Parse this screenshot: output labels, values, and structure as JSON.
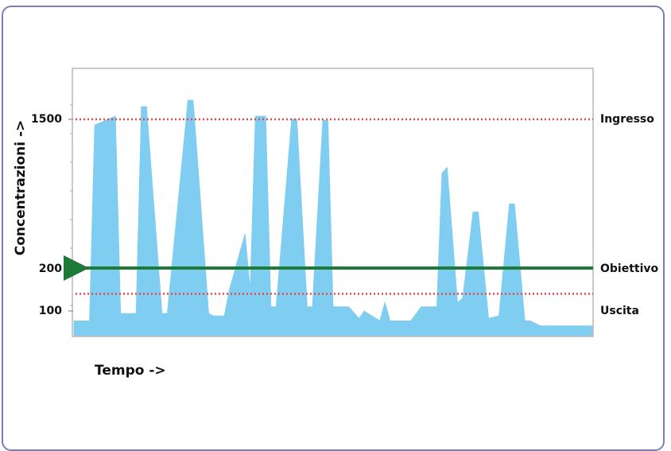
{
  "chart_data": {
    "type": "area",
    "xlabel": "Tempo ->",
    "ylabel": "Concentrazioni ->",
    "ytick_labels": [
      {
        "label": "1500",
        "value": 1500
      },
      {
        "label": "200",
        "value": 200
      },
      {
        "label": "100",
        "value": 100
      }
    ],
    "reference_lines": [
      {
        "name": "Ingresso",
        "value": 1500,
        "style": "dotted",
        "color": "#e24b4b"
      },
      {
        "name": "Obiettivo",
        "value": 200,
        "style": "arrow",
        "color": "#1f7a3a"
      },
      {
        "name": "Uscita",
        "value": 140,
        "style": "dotted",
        "color": "#e24b4b"
      }
    ],
    "series": [
      {
        "color": "#7fcdf0",
        "x": [
          0,
          3,
          4,
          8,
          9,
          12,
          13,
          14,
          17,
          18,
          22,
          23,
          26,
          27,
          29,
          30,
          33,
          34,
          35,
          37,
          38,
          39,
          42,
          43,
          45,
          46,
          48,
          49,
          50,
          53,
          55,
          56,
          59,
          60,
          61,
          64,
          65,
          67,
          68,
          70,
          71,
          72,
          74,
          75,
          77,
          78,
          80,
          82,
          84,
          85,
          87,
          88,
          90,
          91,
          92,
          94,
          95,
          100
        ],
        "values": [
          60,
          60,
          1450,
          1520,
          90,
          90,
          1580,
          1580,
          90,
          90,
          1620,
          1620,
          90,
          80,
          80,
          150,
          500,
          150,
          1520,
          1520,
          110,
          110,
          1500,
          1500,
          110,
          110,
          1490,
          1490,
          110,
          110,
          70,
          100,
          60,
          120,
          60,
          60,
          60,
          110,
          110,
          110,
          1030,
          1080,
          120,
          130,
          690,
          690,
          70,
          80,
          760,
          760,
          60,
          60,
          40,
          40,
          40,
          40,
          40,
          40
        ]
      }
    ]
  }
}
